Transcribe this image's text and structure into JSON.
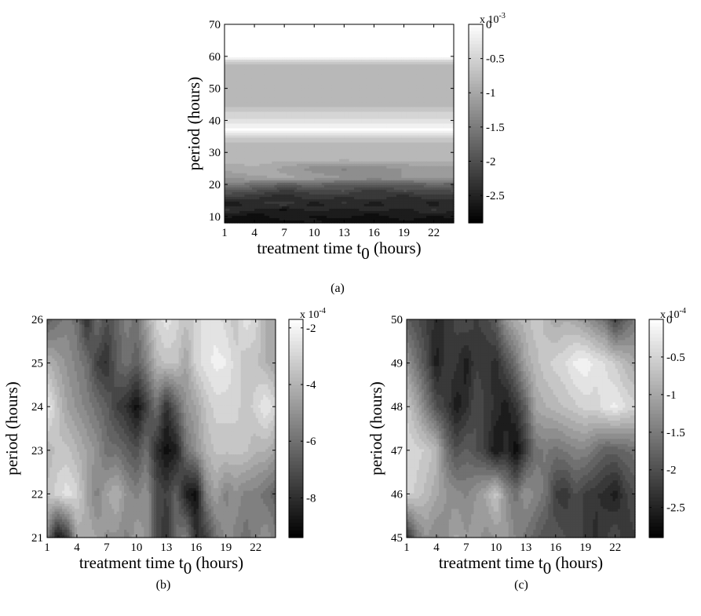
{
  "figure": {
    "panels": [
      {
        "id": "a",
        "caption": "(a)",
        "xlabel_main": "treatment time t",
        "xlabel_sub": "0",
        "xlabel_tail": " (hours)",
        "ylabel": "period (hours)",
        "colorbar": {
          "multiplier_base": "x 10",
          "multiplier_exp": "-3",
          "ticks": [
            "0",
            "-0.5",
            "-1",
            "-1.5",
            "-2",
            "-2.5"
          ]
        }
      },
      {
        "id": "b",
        "caption": "(b)",
        "xlabel_main": "treatment time t",
        "xlabel_sub": "0",
        "xlabel_tail": " (hours)",
        "ylabel": "period (hours)",
        "colorbar": {
          "multiplier_base": "x 10",
          "multiplier_exp": "-4",
          "ticks": [
            "-2",
            "-4",
            "-6",
            "-8"
          ]
        }
      },
      {
        "id": "c",
        "caption": "(c)",
        "xlabel_main": "treatment time t",
        "xlabel_sub": "0",
        "xlabel_tail": " (hours)",
        "ylabel": "period (hours)",
        "colorbar": {
          "multiplier_base": "x 10",
          "multiplier_exp": "-4",
          "ticks": [
            "0",
            "-0.5",
            "-1",
            "-1.5",
            "-2",
            "-2.5"
          ]
        }
      }
    ]
  },
  "chart_data": [
    {
      "type": "heatmap",
      "panel": "a",
      "colormap": "gray",
      "xlabel": "treatment time t0 (hours)",
      "ylabel": "period (hours)",
      "xlim": [
        1,
        24
      ],
      "ylim": [
        8,
        70
      ],
      "xticks": [
        1,
        4,
        7,
        10,
        13,
        16,
        19,
        22
      ],
      "yticks": [
        10,
        20,
        30,
        40,
        50,
        60,
        70
      ],
      "clim": [
        -0.0029,
        0
      ],
      "colorbar_ticks": [
        0,
        -0.0005,
        -0.001,
        -0.0015,
        -0.002,
        -0.0025
      ],
      "x": [
        1,
        4,
        7,
        10,
        13,
        16,
        19,
        22,
        24
      ],
      "y": [
        8,
        10,
        12,
        14,
        16,
        18,
        20,
        22,
        25,
        28,
        33,
        37,
        45,
        57,
        60,
        70
      ],
      "z_units": "x 10^-3",
      "z": [
        [
          -2.8,
          -2.7,
          -2.8,
          -2.6,
          -2.8,
          -2.7,
          -2.8,
          -2.7,
          -2.8
        ],
        [
          -2.6,
          -2.8,
          -2.5,
          -2.7,
          -2.6,
          -2.8,
          -2.5,
          -2.7,
          -2.6
        ],
        [
          -2.3,
          -2.5,
          -2.7,
          -2.4,
          -2.6,
          -2.4,
          -2.6,
          -2.3,
          -2.5
        ],
        [
          -2.7,
          -2.4,
          -2.2,
          -2.6,
          -2.3,
          -2.6,
          -2.3,
          -2.6,
          -2.4
        ],
        [
          -2.1,
          -2.3,
          -2.5,
          -2.2,
          -2.4,
          -2.2,
          -2.5,
          -2.2,
          -2.3
        ],
        [
          -1.9,
          -2.0,
          -2.2,
          -2.1,
          -2.0,
          -2.3,
          -2.0,
          -2.1,
          -2.0
        ],
        [
          -1.5,
          -1.6,
          -1.8,
          -1.7,
          -1.9,
          -1.8,
          -1.9,
          -1.7,
          -1.8
        ],
        [
          -1.2,
          -1.1,
          -1.0,
          -1.1,
          -1.2,
          -1.3,
          -1.2,
          -1.1,
          -1.2
        ],
        [
          -1.0,
          -0.9,
          -1.1,
          -1.3,
          -1.4,
          -1.3,
          -1.2,
          -1.1,
          -1.1
        ],
        [
          -0.8,
          -0.8,
          -0.8,
          -0.8,
          -0.8,
          -0.8,
          -0.8,
          -0.8,
          -0.8
        ],
        [
          -0.8,
          -0.8,
          -0.8,
          -0.8,
          -0.8,
          -0.8,
          -0.8,
          -0.8,
          -0.8
        ],
        [
          -0.05,
          -0.05,
          -0.05,
          -0.05,
          -0.05,
          -0.05,
          -0.05,
          -0.05,
          -0.05
        ],
        [
          -0.8,
          -0.8,
          -0.8,
          -0.8,
          -0.8,
          -0.8,
          -0.8,
          -0.8,
          -0.8
        ],
        [
          -0.8,
          -0.8,
          -0.8,
          -0.8,
          -0.8,
          -0.8,
          -0.8,
          -0.8,
          -0.8
        ],
        [
          -0.05,
          -0.05,
          -0.05,
          -0.05,
          -0.05,
          -0.05,
          -0.05,
          -0.05,
          -0.05
        ],
        [
          -0.05,
          -0.05,
          -0.05,
          -0.05,
          -0.05,
          -0.05,
          -0.05,
          -0.05,
          -0.05
        ]
      ]
    },
    {
      "type": "heatmap",
      "panel": "b",
      "colormap": "gray",
      "xlabel": "treatment time t0 (hours)",
      "ylabel": "period (hours)",
      "xlim": [
        1,
        24
      ],
      "ylim": [
        21,
        26
      ],
      "xticks": [
        1,
        4,
        7,
        10,
        13,
        16,
        19,
        22
      ],
      "yticks": [
        21,
        22,
        23,
        24,
        25,
        26
      ],
      "clim": [
        -0.00094,
        -0.00017
      ],
      "colorbar_ticks": [
        -0.0002,
        -0.0004,
        -0.0006,
        -0.0008
      ],
      "x": [
        1,
        2,
        3,
        4,
        5,
        6,
        7,
        8,
        9,
        10,
        11,
        12,
        13,
        14,
        15,
        16,
        17,
        18,
        19,
        20,
        21,
        22,
        23,
        24
      ],
      "y": [
        21,
        22,
        23,
        24,
        25,
        26
      ],
      "z_units": "x 10^-4",
      "z": [
        [
          -5.5,
          -8.8,
          -7.8,
          -4.5,
          -4.0,
          -4.5,
          -5.0,
          -5.0,
          -5.5,
          -4.5,
          -5.0,
          -7.0,
          -8.0,
          -6.0,
          -5.5,
          -8.0,
          -7.5,
          -6.0,
          -5.0,
          -5.5,
          -6.0,
          -5.5,
          -5.0,
          -5.5
        ],
        [
          -3.5,
          -3.0,
          -2.5,
          -3.0,
          -4.5,
          -5.5,
          -4.5,
          -4.0,
          -5.0,
          -5.5,
          -5.0,
          -7.0,
          -7.5,
          -6.5,
          -8.5,
          -9.0,
          -5.5,
          -4.5,
          -5.5,
          -5.0,
          -5.5,
          -5.5,
          -6.0,
          -6.5
        ],
        [
          -4.0,
          -3.5,
          -3.5,
          -4.0,
          -4.5,
          -5.0,
          -6.0,
          -6.0,
          -6.5,
          -7.0,
          -6.0,
          -8.0,
          -9.0,
          -8.5,
          -6.0,
          -5.0,
          -4.0,
          -3.5,
          -3.5,
          -3.5,
          -3.5,
          -4.0,
          -4.0,
          -4.5
        ],
        [
          -2.2,
          -3.5,
          -4.5,
          -5.0,
          -5.5,
          -6.0,
          -6.5,
          -7.5,
          -8.0,
          -9.0,
          -7.5,
          -6.0,
          -8.0,
          -6.5,
          -5.0,
          -4.5,
          -3.5,
          -3.0,
          -3.0,
          -3.0,
          -3.5,
          -3.0,
          -2.3,
          -3.0
        ],
        [
          -4.0,
          -4.5,
          -5.0,
          -5.5,
          -6.0,
          -7.5,
          -8.0,
          -6.5,
          -6.0,
          -6.5,
          -5.5,
          -4.0,
          -3.5,
          -3.5,
          -4.5,
          -3.0,
          -2.5,
          -2.2,
          -2.3,
          -3.0,
          -3.5,
          -3.5,
          -4.0,
          -4.5
        ],
        [
          -6.5,
          -6.0,
          -5.5,
          -6.0,
          -8.0,
          -6.0,
          -7.0,
          -6.5,
          -5.5,
          -6.0,
          -4.5,
          -3.0,
          -2.5,
          -3.0,
          -3.5,
          -3.0,
          -2.5,
          -2.5,
          -3.0,
          -3.5,
          -2.5,
          -3.0,
          -4.0,
          -4.5
        ]
      ]
    },
    {
      "type": "heatmap",
      "panel": "c",
      "colormap": "gray",
      "xlabel": "treatment time t0 (hours)",
      "ylabel": "period (hours)",
      "xlim": [
        1,
        24
      ],
      "ylim": [
        45,
        50
      ],
      "xticks": [
        1,
        4,
        7,
        10,
        13,
        16,
        19,
        22
      ],
      "yticks": [
        45,
        46,
        47,
        48,
        49,
        50
      ],
      "clim": [
        -0.00029,
        0
      ],
      "colorbar_ticks": [
        0,
        -5e-05,
        -0.0001,
        -0.00015,
        -0.0002,
        -0.00025
      ],
      "x": [
        1,
        2,
        3,
        4,
        5,
        6,
        7,
        8,
        9,
        10,
        11,
        12,
        13,
        14,
        15,
        16,
        17,
        18,
        19,
        20,
        21,
        22,
        23,
        24
      ],
      "y": [
        45,
        46,
        47,
        48,
        49,
        50
      ],
      "z_units": "x 10^-4",
      "z": [
        [
          -2.4,
          -1.6,
          -1.2,
          -1.4,
          -1.3,
          -1.0,
          -1.2,
          -1.1,
          -1.3,
          -1.2,
          -1.1,
          -1.4,
          -1.6,
          -1.8,
          -2.0,
          -1.9,
          -2.0,
          -2.1,
          -2.2,
          -2.4,
          -2.2,
          -2.0,
          -2.3,
          -2.2
        ],
        [
          -0.5,
          -0.6,
          -0.8,
          -1.0,
          -1.2,
          -1.3,
          -1.4,
          -1.2,
          -1.0,
          -0.6,
          -1.3,
          -1.6,
          -1.2,
          -1.4,
          -1.6,
          -2.2,
          -2.3,
          -2.0,
          -2.2,
          -2.3,
          -2.4,
          -2.6,
          -2.2,
          -2.0
        ],
        [
          -0.4,
          -0.5,
          -0.6,
          -0.8,
          -1.6,
          -2.0,
          -1.8,
          -2.0,
          -2.2,
          -2.7,
          -2.4,
          -2.8,
          -2.2,
          -1.6,
          -1.5,
          -1.6,
          -1.5,
          -1.4,
          -1.4,
          -1.6,
          -1.8,
          -1.8,
          -1.7,
          -1.6
        ],
        [
          -0.6,
          -1.0,
          -1.5,
          -2.0,
          -2.2,
          -2.6,
          -2.4,
          -2.0,
          -2.2,
          -2.4,
          -2.6,
          -2.3,
          -1.8,
          -1.0,
          -0.9,
          -0.8,
          -0.7,
          -0.6,
          -0.5,
          -0.5,
          -0.3,
          -0.2,
          -0.4,
          -0.5
        ],
        [
          -1.2,
          -1.6,
          -2.0,
          -2.6,
          -2.2,
          -2.3,
          -2.6,
          -2.2,
          -2.3,
          -2.4,
          -2.0,
          -1.6,
          -1.0,
          -0.8,
          -0.6,
          -0.5,
          -0.4,
          -0.2,
          -0.1,
          -0.3,
          -0.4,
          -0.6,
          -0.8,
          -1.0
        ],
        [
          -1.8,
          -2.0,
          -2.2,
          -2.4,
          -2.3,
          -2.1,
          -2.0,
          -2.2,
          -2.1,
          -1.8,
          -1.2,
          -0.9,
          -0.8,
          -0.6,
          -0.8,
          -1.0,
          -0.9,
          -1.0,
          -1.2,
          -1.4,
          -1.6,
          -2.2,
          -1.8,
          -1.5
        ]
      ]
    }
  ]
}
